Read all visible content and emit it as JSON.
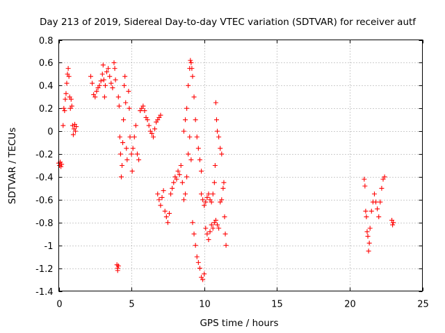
{
  "chart_data": {
    "type": "scatter",
    "title": "Day 213 of 2019, Sidereal Day-to-day VTEC variation (SDTVAR) for receiver autf",
    "xlabel": "GPS time / hours",
    "ylabel": "SDTVAR / TECUs",
    "xlim": [
      0,
      25
    ],
    "ylim": [
      -1.4,
      0.8
    ],
    "xticks": [
      0,
      5,
      10,
      15,
      20,
      25
    ],
    "yticks": [
      -1.4,
      -1.2,
      -1,
      -0.8,
      -0.6,
      -0.4,
      -0.2,
      0,
      0.2,
      0.4,
      0.6,
      0.8
    ],
    "xtick_labels": [
      "0",
      "5",
      "10",
      "15",
      "20",
      "25"
    ],
    "ytick_labels": [
      "-1.4",
      "-1.2",
      "-1",
      "-0.8",
      "-0.6",
      "-0.4",
      "-0.2",
      "0",
      "0.2",
      "0.4",
      "0.6",
      "0.8"
    ],
    "grid": true,
    "marker": "+",
    "color": "#ff0000",
    "series": [
      {
        "name": "SDTVAR",
        "points": [
          [
            0.0,
            -0.28
          ],
          [
            0.05,
            -0.3
          ],
          [
            0.1,
            -0.27
          ],
          [
            0.15,
            -0.31
          ],
          [
            0.2,
            -0.29
          ],
          [
            0.3,
            0.05
          ],
          [
            0.35,
            0.2
          ],
          [
            0.4,
            0.18
          ],
          [
            0.45,
            0.28
          ],
          [
            0.5,
            0.33
          ],
          [
            0.55,
            0.42
          ],
          [
            0.6,
            0.5
          ],
          [
            0.65,
            0.55
          ],
          [
            0.7,
            0.48
          ],
          [
            0.75,
            0.3
          ],
          [
            0.8,
            0.2
          ],
          [
            0.85,
            0.28
          ],
          [
            0.9,
            0.22
          ],
          [
            0.95,
            0.05
          ],
          [
            1.0,
            -0.03
          ],
          [
            1.05,
            0.02
          ],
          [
            1.1,
            0.06
          ],
          [
            1.15,
            0.0
          ],
          [
            1.2,
            0.04
          ],
          [
            2.2,
            0.48
          ],
          [
            2.3,
            0.42
          ],
          [
            2.4,
            0.32
          ],
          [
            2.5,
            0.3
          ],
          [
            2.6,
            0.35
          ],
          [
            2.7,
            0.38
          ],
          [
            2.8,
            0.4
          ],
          [
            2.9,
            0.44
          ],
          [
            3.0,
            0.5
          ],
          [
            3.05,
            0.58
          ],
          [
            3.1,
            0.45
          ],
          [
            3.15,
            0.3
          ],
          [
            3.2,
            0.4
          ],
          [
            3.3,
            0.52
          ],
          [
            3.4,
            0.55
          ],
          [
            3.5,
            0.48
          ],
          [
            3.6,
            0.42
          ],
          [
            3.7,
            0.38
          ],
          [
            3.8,
            0.6
          ],
          [
            3.85,
            0.55
          ],
          [
            3.9,
            0.45
          ],
          [
            4.0,
            -1.17
          ],
          [
            4.05,
            -1.2
          ],
          [
            4.1,
            -1.18
          ],
          [
            4.05,
            -1.22
          ],
          [
            4.1,
            0.3
          ],
          [
            4.15,
            0.22
          ],
          [
            4.2,
            -0.05
          ],
          [
            4.25,
            -0.2
          ],
          [
            4.3,
            -0.4
          ],
          [
            4.35,
            -0.3
          ],
          [
            4.4,
            -0.1
          ],
          [
            4.45,
            0.1
          ],
          [
            4.5,
            0.4
          ],
          [
            4.55,
            0.48
          ],
          [
            4.6,
            0.25
          ],
          [
            4.65,
            -0.15
          ],
          [
            4.7,
            -0.25
          ],
          [
            4.8,
            0.35
          ],
          [
            4.85,
            0.2
          ],
          [
            4.9,
            -0.05
          ],
          [
            5.0,
            -0.2
          ],
          [
            5.05,
            -0.35
          ],
          [
            5.1,
            -0.15
          ],
          [
            5.2,
            -0.05
          ],
          [
            5.3,
            0.05
          ],
          [
            5.4,
            -0.2
          ],
          [
            5.5,
            -0.25
          ],
          [
            5.6,
            0.18
          ],
          [
            5.7,
            0.2
          ],
          [
            5.8,
            0.22
          ],
          [
            5.9,
            0.18
          ],
          [
            6.0,
            0.12
          ],
          [
            6.1,
            0.1
          ],
          [
            6.2,
            0.05
          ],
          [
            6.3,
            0.0
          ],
          [
            6.4,
            -0.02
          ],
          [
            6.5,
            -0.05
          ],
          [
            6.6,
            0.02
          ],
          [
            6.7,
            0.08
          ],
          [
            6.8,
            0.1
          ],
          [
            6.9,
            0.12
          ],
          [
            7.0,
            0.14
          ],
          [
            6.8,
            -0.55
          ],
          [
            6.9,
            -0.6
          ],
          [
            7.0,
            -0.65
          ],
          [
            7.1,
            -0.58
          ],
          [
            7.2,
            -0.52
          ],
          [
            7.3,
            -0.7
          ],
          [
            7.4,
            -0.75
          ],
          [
            7.5,
            -0.8
          ],
          [
            7.6,
            -0.72
          ],
          [
            7.7,
            -0.55
          ],
          [
            7.8,
            -0.5
          ],
          [
            7.9,
            -0.45
          ],
          [
            8.0,
            -0.4
          ],
          [
            8.1,
            -0.42
          ],
          [
            8.2,
            -0.35
          ],
          [
            8.3,
            -0.38
          ],
          [
            8.4,
            -0.3
          ],
          [
            8.5,
            -0.45
          ],
          [
            8.6,
            -0.6
          ],
          [
            8.7,
            -0.55
          ],
          [
            8.8,
            -0.4
          ],
          [
            8.9,
            -0.2
          ],
          [
            9.0,
            -0.05
          ],
          [
            9.1,
            -0.25
          ],
          [
            9.2,
            -0.8
          ],
          [
            9.3,
            -0.9
          ],
          [
            9.4,
            -1.0
          ],
          [
            9.5,
            -1.1
          ],
          [
            9.6,
            -1.15
          ],
          [
            9.7,
            -1.2
          ],
          [
            9.8,
            -1.28
          ],
          [
            9.9,
            -1.3
          ],
          [
            10.0,
            -1.25
          ],
          [
            8.6,
            0.0
          ],
          [
            8.7,
            0.1
          ],
          [
            8.8,
            0.2
          ],
          [
            8.9,
            0.4
          ],
          [
            9.0,
            0.55
          ],
          [
            9.05,
            0.62
          ],
          [
            9.1,
            0.6
          ],
          [
            9.15,
            0.55
          ],
          [
            9.2,
            0.48
          ],
          [
            9.3,
            0.3
          ],
          [
            9.4,
            0.1
          ],
          [
            9.5,
            -0.05
          ],
          [
            9.6,
            -0.15
          ],
          [
            9.7,
            -0.25
          ],
          [
            9.8,
            -0.35
          ],
          [
            9.8,
            -0.55
          ],
          [
            9.9,
            -0.6
          ],
          [
            10.0,
            -0.65
          ],
          [
            10.1,
            -0.62
          ],
          [
            10.2,
            -0.58
          ],
          [
            10.3,
            -0.55
          ],
          [
            10.4,
            -0.6
          ],
          [
            10.5,
            -0.62
          ],
          [
            10.6,
            -0.55
          ],
          [
            10.7,
            -0.45
          ],
          [
            10.75,
            -0.3
          ],
          [
            10.8,
            0.25
          ],
          [
            10.85,
            0.1
          ],
          [
            10.9,
            0.0
          ],
          [
            11.0,
            -0.05
          ],
          [
            11.1,
            -0.15
          ],
          [
            11.2,
            -0.2
          ],
          [
            10.1,
            -0.85
          ],
          [
            10.2,
            -0.9
          ],
          [
            10.3,
            -0.95
          ],
          [
            10.4,
            -0.88
          ],
          [
            10.5,
            -0.82
          ],
          [
            10.6,
            -0.85
          ],
          [
            10.7,
            -0.8
          ],
          [
            10.8,
            -0.78
          ],
          [
            10.9,
            -0.82
          ],
          [
            11.0,
            -0.85
          ],
          [
            11.1,
            -0.62
          ],
          [
            11.2,
            -0.6
          ],
          [
            11.3,
            -0.5
          ],
          [
            11.35,
            -0.45
          ],
          [
            11.4,
            -0.75
          ],
          [
            11.45,
            -0.9
          ],
          [
            11.5,
            -1.0
          ],
          [
            21.0,
            -0.42
          ],
          [
            21.05,
            -0.48
          ],
          [
            21.1,
            -0.7
          ],
          [
            21.15,
            -0.75
          ],
          [
            21.2,
            -0.88
          ],
          [
            21.25,
            -0.92
          ],
          [
            21.3,
            -1.05
          ],
          [
            21.35,
            -0.98
          ],
          [
            21.4,
            -0.85
          ],
          [
            21.5,
            -0.7
          ],
          [
            21.6,
            -0.62
          ],
          [
            21.7,
            -0.55
          ],
          [
            21.8,
            -0.62
          ],
          [
            21.9,
            -0.68
          ],
          [
            22.0,
            -0.75
          ],
          [
            22.1,
            -0.62
          ],
          [
            22.2,
            -0.5
          ],
          [
            22.3,
            -0.42
          ],
          [
            22.4,
            -0.4
          ],
          [
            22.9,
            -0.78
          ],
          [
            23.0,
            -0.8
          ],
          [
            22.95,
            -0.82
          ]
        ]
      }
    ]
  }
}
